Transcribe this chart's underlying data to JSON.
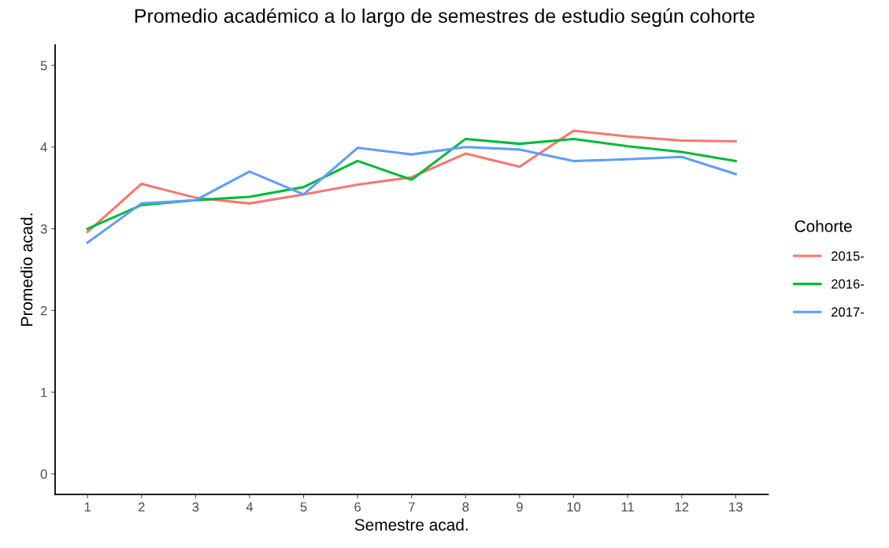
{
  "chart_data": {
    "type": "line",
    "title": "Promedio académico a lo largo de semestres de estudio según cohorte",
    "xlabel": "Semestre acad.",
    "ylabel": "Promedio acad.",
    "legend_title": "Cohorte",
    "x": [
      1,
      2,
      3,
      4,
      5,
      6,
      7,
      8,
      9,
      10,
      11,
      12,
      13
    ],
    "series": [
      {
        "name": "2015-",
        "color": "#f8766d",
        "values": [
          2.96,
          3.55,
          3.38,
          3.31,
          3.42,
          3.54,
          3.63,
          3.92,
          3.76,
          4.2,
          4.13,
          4.08,
          4.07
        ]
      },
      {
        "name": "2016-",
        "color": "#00ba38",
        "values": [
          3.0,
          3.29,
          3.35,
          3.39,
          3.51,
          3.83,
          3.6,
          4.1,
          4.04,
          4.1,
          4.01,
          3.94,
          3.83
        ]
      },
      {
        "name": "2017-",
        "color": "#619cff",
        "values": [
          2.83,
          3.31,
          3.35,
          3.7,
          3.42,
          3.99,
          3.91,
          4.0,
          3.97,
          3.83,
          3.85,
          3.88,
          3.67
        ]
      }
    ],
    "xlim": [
      0.4,
      13.6
    ],
    "ylim": [
      -0.25,
      5.25
    ],
    "xticks": [
      1,
      2,
      3,
      4,
      5,
      6,
      7,
      8,
      9,
      10,
      11,
      12,
      13
    ],
    "yticks": [
      0,
      1,
      2,
      3,
      4,
      5
    ],
    "grid": false,
    "legend": "right",
    "marker": "none",
    "line_style": "solid"
  }
}
